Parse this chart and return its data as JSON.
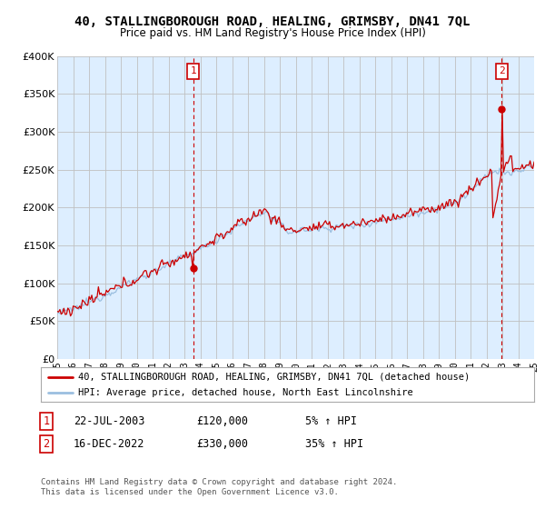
{
  "title": "40, STALLINGBOROUGH ROAD, HEALING, GRIMSBY, DN41 7QL",
  "subtitle": "Price paid vs. HM Land Registry's House Price Index (HPI)",
  "ylim": [
    0,
    400000
  ],
  "yticks": [
    0,
    50000,
    100000,
    150000,
    200000,
    250000,
    300000,
    350000,
    400000
  ],
  "ytick_labels": [
    "£0",
    "£50K",
    "£100K",
    "£150K",
    "£200K",
    "£250K",
    "£300K",
    "£350K",
    "£400K"
  ],
  "sale1_date_num": 2003.55,
  "sale1_price": 120000,
  "sale1_label": "1",
  "sale2_date_num": 2022.96,
  "sale2_price": 330000,
  "sale2_label": "2",
  "hpi_color": "#9bbfe0",
  "price_color": "#cc0000",
  "vline_color": "#cc0000",
  "grid_color": "#c0c0c0",
  "chart_bg": "#ddeeff",
  "bg_color": "#ffffff",
  "legend_entry1": "40, STALLINGBOROUGH ROAD, HEALING, GRIMSBY, DN41 7QL (detached house)",
  "legend_entry2": "HPI: Average price, detached house, North East Lincolnshire",
  "table_row1": [
    "1",
    "22-JUL-2003",
    "£120,000",
    "5% ↑ HPI"
  ],
  "table_row2": [
    "2",
    "16-DEC-2022",
    "£330,000",
    "35% ↑ HPI"
  ],
  "footnote": "Contains HM Land Registry data © Crown copyright and database right 2024.\nThis data is licensed under the Open Government Licence v3.0.",
  "xmin": 1995,
  "xmax": 2025
}
